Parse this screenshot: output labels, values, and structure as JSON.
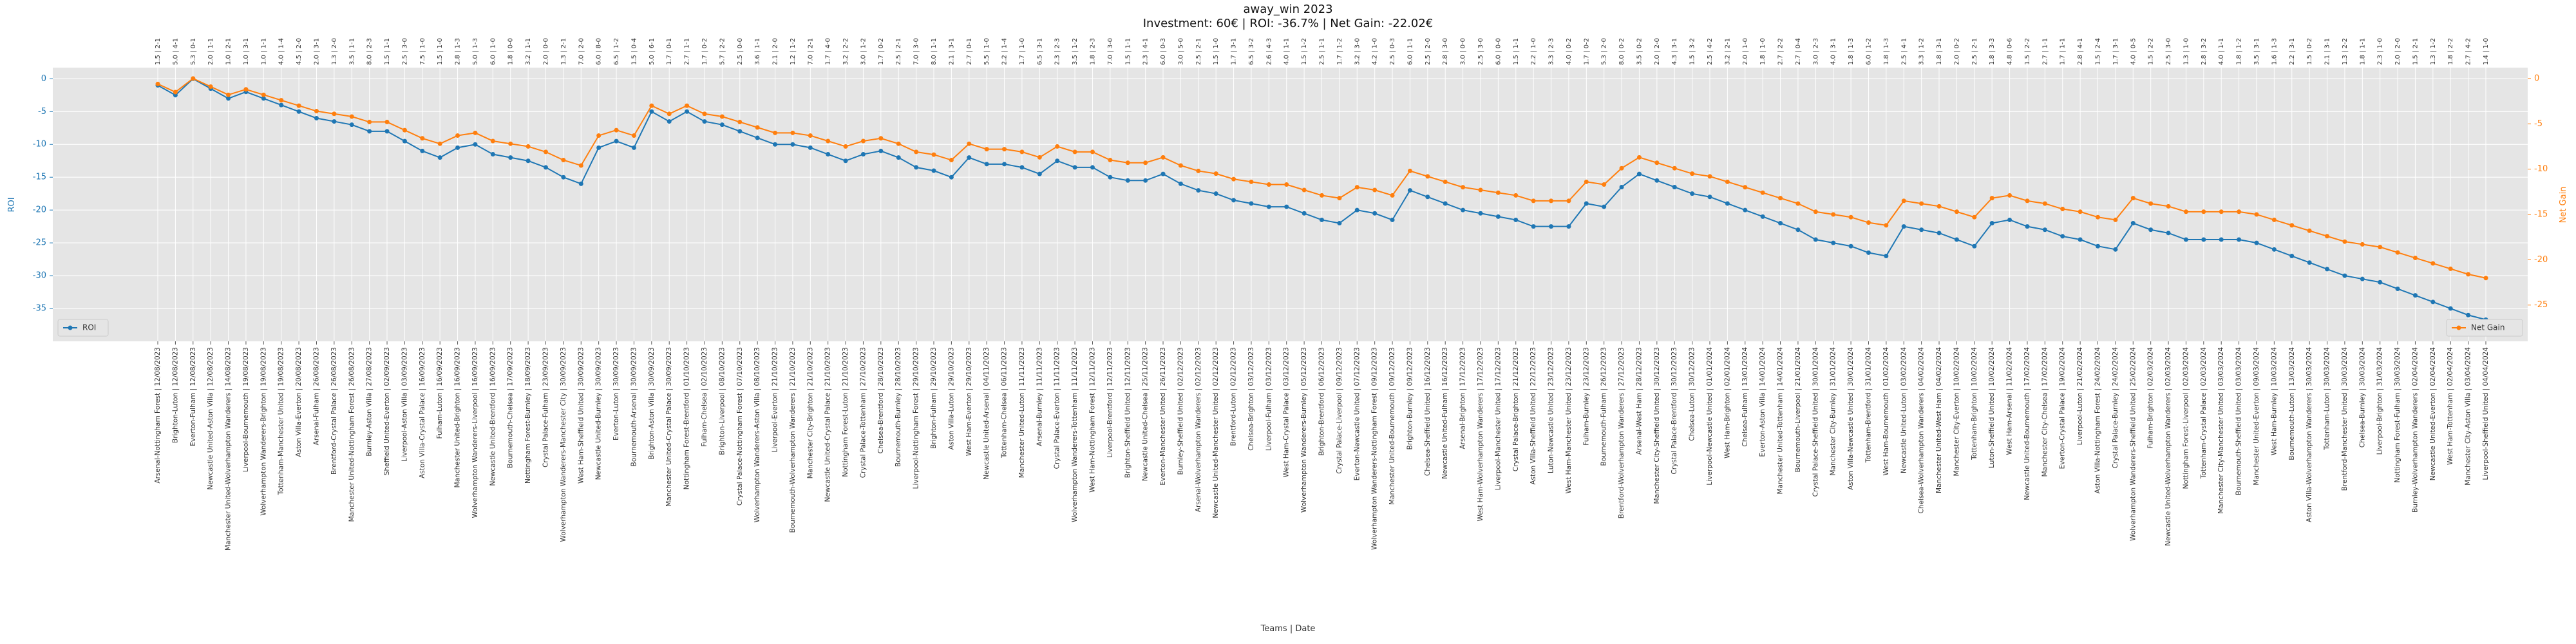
{
  "chart_data": {
    "type": "line",
    "title": "away_win 2023",
    "subtitle": "Investment: 60€ | ROI: -36.7% | Net Gain: -22.02€",
    "x_label": "Teams | Date",
    "y_label": "ROI",
    "y2_label": "Net Gain",
    "grid": true,
    "categories": [
      "Arsenal-Nottingham Forest | 12/08/2023",
      "Brighton-Luton | 12/08/2023",
      "Everton-Fulham | 12/08/2023",
      "Newcastle United-Aston Villa | 12/08/2023",
      "Manchester United-Wolverhampton Wanderers | 14/08/2023",
      "Liverpool-Bournemouth | 19/08/2023",
      "Wolverhampton Wanderers-Brighton | 19/08/2023",
      "Tottenham-Manchester United | 19/08/2023",
      "Aston Villa-Everton | 20/08/2023",
      "Arsenal-Fulham | 26/08/2023",
      "Brentford-Crystal Palace | 26/08/2023",
      "Manchester United-Nottingham Forest | 26/08/2023",
      "Burnley-Aston Villa | 27/08/2023",
      "Sheffield United-Everton | 02/09/2023",
      "Liverpool-Aston Villa | 03/09/2023",
      "Aston Villa-Crystal Palace | 16/09/2023",
      "Fulham-Luton | 16/09/2023",
      "Manchester United-Brighton | 16/09/2023",
      "Wolverhampton Wanderers-Liverpool | 16/09/2023",
      "Newcastle United-Brentford | 16/09/2023",
      "Bournemouth-Chelsea | 17/09/2023",
      "Nottingham Forest-Burnley | 18/09/2023",
      "Crystal Palace-Fulham | 23/09/2023",
      "Wolverhampton Wanderers-Manchester City | 30/09/2023",
      "West Ham-Sheffield United | 30/09/2023",
      "Newcastle United-Burnley | 30/09/2023",
      "Everton-Luton | 30/09/2023",
      "Bournemouth-Arsenal | 30/09/2023",
      "Brighton-Aston Villa | 30/09/2023",
      "Manchester United-Crystal Palace | 30/09/2023",
      "Nottingham Forest-Brentford | 01/10/2023",
      "Fulham-Chelsea | 02/10/2023",
      "Brighton-Liverpool | 08/10/2023",
      "Crystal Palace-Nottingham Forest | 07/10/2023",
      "Wolverhampton Wanderers-Aston Villa | 08/10/2023",
      "Liverpool-Everton | 21/10/2023",
      "Bournemouth-Wolverhampton Wanderers | 21/10/2023",
      "Manchester City-Brighton | 21/10/2023",
      "Newcastle United-Crystal Palace | 21/10/2023",
      "Nottingham Forest-Luton | 21/10/2023",
      "Crystal Palace-Tottenham | 27/10/2023",
      "Chelsea-Brentford | 28/10/2023",
      "Bournemouth-Burnley | 28/10/2023",
      "Liverpool-Nottingham Forest | 29/10/2023",
      "Brighton-Fulham | 29/10/2023",
      "Aston Villa-Luton | 29/10/2023",
      "West Ham-Everton | 29/10/2023",
      "Newcastle United-Arsenal | 04/11/2023",
      "Tottenham-Chelsea | 06/11/2023",
      "Manchester United-Luton | 11/11/2023",
      "Arsenal-Burnley | 11/11/2023",
      "Crystal Palace-Everton | 11/11/2023",
      "Wolverhampton Wanderers-Tottenham | 11/11/2023",
      "West Ham-Nottingham Forest | 12/11/2023",
      "Liverpool-Brentford | 12/11/2023",
      "Brighton-Sheffield United | 12/11/2023",
      "Newcastle United-Chelsea | 25/11/2023",
      "Everton-Manchester United | 26/11/2023",
      "Burnley-Sheffield United | 02/12/2023",
      "Arsenal-Wolverhampton Wanderers | 02/12/2023",
      "Newcastle United-Manchester United | 02/12/2023",
      "Brentford-Luton | 02/12/2023",
      "Chelsea-Brighton | 03/12/2023",
      "Liverpool-Fulham | 03/12/2023",
      "West Ham-Crystal Palace | 03/12/2023",
      "Wolverhampton Wanderers-Burnley | 05/12/2023",
      "Brighton-Brentford | 06/12/2023",
      "Crystal Palace-Liverpool | 09/12/2023",
      "Everton-Newcastle United | 07/12/2023",
      "Wolverhampton Wanderers-Nottingham Forest | 09/12/2023",
      "Manchester United-Bournemouth | 09/12/2023",
      "Brighton-Burnley | 09/12/2023",
      "Chelsea-Sheffield United | 16/12/2023",
      "Newcastle United-Fulham | 16/12/2023",
      "Arsenal-Brighton | 17/12/2023",
      "West Ham-Wolverhampton Wanderers | 17/12/2023",
      "Liverpool-Manchester United | 17/12/2023",
      "Crystal Palace-Brighton | 21/12/2023",
      "Aston Villa-Sheffield United | 22/12/2023",
      "Luton-Newcastle United | 23/12/2023",
      "West Ham-Manchester United | 23/12/2023",
      "Fulham-Burnley | 23/12/2023",
      "Bournemouth-Fulham | 26/12/2023",
      "Brentford-Wolverhampton Wanderers | 27/12/2023",
      "Arsenal-West Ham | 28/12/2023",
      "Manchester City-Sheffield United | 30/12/2023",
      "Crystal Palace-Brentford | 30/12/2023",
      "Chelsea-Luton | 30/12/2023",
      "Liverpool-Newcastle United | 01/01/2024",
      "West Ham-Brighton | 02/01/2024",
      "Chelsea-Fulham | 13/01/2024",
      "Everton-Aston Villa | 14/01/2024",
      "Manchester United-Tottenham | 14/01/2024",
      "Bournemouth-Liverpool | 21/01/2024",
      "Crystal Palace-Sheffield United | 30/01/2024",
      "Manchester City-Burnley | 31/01/2024",
      "Aston Villa-Newcastle United | 30/01/2024",
      "Tottenham-Brentford | 31/01/2024",
      "West Ham-Bournemouth | 01/02/2024",
      "Newcastle United-Luton | 03/02/2024",
      "Chelsea-Wolverhampton Wanderers | 04/02/2024",
      "Manchester United-West Ham | 04/02/2024",
      "Manchester City-Everton | 10/02/2024",
      "Tottenham-Brighton | 10/02/2024",
      "Luton-Sheffield United | 10/02/2024",
      "West Ham-Arsenal | 11/02/2024",
      "Newcastle United-Bournemouth | 17/02/2024",
      "Manchester City-Chelsea | 17/02/2024",
      "Everton-Crystal Palace | 19/02/2024",
      "Liverpool-Luton | 21/02/2024",
      "Aston Villa-Nottingham Forest | 24/02/2024",
      "Crystal Palace-Burnley | 24/02/2024",
      "Wolverhampton Wanderers-Sheffield United | 25/02/2024",
      "Fulham-Brighton | 02/03/2024",
      "Newcastle United-Wolverhampton Wanderers | 02/03/2024",
      "Nottingham Forest-Liverpool | 02/03/2024",
      "Tottenham-Crystal Palace | 02/03/2024",
      "Manchester City-Manchester United | 03/03/2024",
      "Bournemouth-Sheffield United | 03/03/2024",
      "Manchester United-Everton | 09/03/2024",
      "West Ham-Burnley | 10/03/2024",
      "Bournemouth-Luton | 13/03/2024",
      "Aston Villa-Wolverhampton Wanderers | 30/03/2024",
      "Tottenham-Luton | 30/03/2024",
      "Brentford-Manchester United | 30/03/2024",
      "Chelsea-Burnley | 30/03/2024",
      "Liverpool-Brighton | 31/03/2024",
      "Nottingham Forest-Fulham | 30/03/2024",
      "Burnley-Wolverhampton Wanderers | 02/04/2024",
      "Newcastle United-Everton | 02/04/2024",
      "West Ham-Tottenham | 02/04/2024",
      "Manchester City-Aston Villa | 03/04/2024",
      "Liverpool-Sheffield United | 04/04/2024"
    ],
    "annotations": [
      "1.5 | 2-1",
      "5.0 | 4-1",
      "5.3 | 0-1",
      "2.0 | 1-1",
      "1.0 | 2-1",
      "1.0 | 3-1",
      "1.0 | 1-1",
      "4.0 | 1-4",
      "4.5 | 2-0",
      "2.0 | 3-1",
      "1.3 | 2-0",
      "3.5 | 1-1",
      "8.0 | 2-3",
      "1.5 | 1-1",
      "2.5 | 3-0",
      "7.5 | 1-0",
      "1.5 | 1-0",
      "2.8 | 1-3",
      "5.0 | 1-3",
      "6.0 | 1-0",
      "1.8 | 0-0",
      "3.2 | 1-1",
      "2.0 | 0-0",
      "1.3 | 2-1",
      "7.0 | 2-0",
      "6.0 | 8-0",
      "6.5 | 1-2",
      "1.5 | 0-4",
      "5.0 | 6-1",
      "1.7 | 0-1",
      "2.7 | 1-1",
      "1.7 | 0-2",
      "5.7 | 2-2",
      "2.5 | 0-0",
      "3.6 | 1-1",
      "2.1 | 2-0",
      "1.2 | 1-2",
      "7.0 | 2-1",
      "1.7 | 4-0",
      "3.2 | 2-2",
      "3.0 | 1-2",
      "1.7 | 0-2",
      "2.5 | 2-1",
      "7.0 | 3-0",
      "8.0 | 1-1",
      "2.1 | 3-1",
      "2.7 | 0-1",
      "5.5 | 1-0",
      "2.2 | 1-4",
      "1.7 | 1-0",
      "6.5 | 3-1",
      "2.3 | 2-3",
      "3.5 | 1-2",
      "1.8 | 2-3",
      "7.0 | 3-0",
      "1.5 | 1-1",
      "2.3 | 4-1",
      "6.0 | 0-3",
      "3.0 | 5-0",
      "2.5 | 2-1",
      "1.5 | 1-0",
      "1.7 | 3-1",
      "6.5 | 3-2",
      "2.6 | 4-3",
      "4.0 | 1-1",
      "1.5 | 1-2",
      "2.5 | 1-1",
      "1.7 | 1-2",
      "3.2 | 3-0",
      "4.2 | 1-0",
      "2.5 | 0-3",
      "6.0 | 1-1",
      "2.5 | 2-0",
      "2.8 | 3-0",
      "3.0 | 0-0",
      "2.5 | 3-0",
      "6.0 | 0-0",
      "1.5 | 1-1",
      "2.2 | 1-0",
      "3.3 | 2-3",
      "4.0 | 0-2",
      "1.7 | 0-2",
      "5.3 | 2-0",
      "8.0 | 0-2",
      "3.5 | 0-2",
      "2.0 | 2-0",
      "4.3 | 3-1",
      "1.5 | 3-2",
      "2.5 | 4-2",
      "3.2 | 2-1",
      "2.0 | 1-0",
      "1.8 | 1-0",
      "2.7 | 2-2",
      "2.7 | 0-4",
      "3.0 | 2-3",
      "4.0 | 3-1",
      "1.8 | 1-3",
      "6.0 | 1-2",
      "1.8 | 1-3",
      "2.5 | 4-1",
      "3.3 | 1-2",
      "1.8 | 3-1",
      "2.0 | 0-2",
      "2.5 | 2-1",
      "1.8 | 3-3",
      "4.8 | 0-6",
      "1.5 | 2-2",
      "2.7 | 1-1",
      "1.7 | 1-1",
      "2.8 | 4-1",
      "1.5 | 2-4",
      "1.7 | 3-1",
      "4.0 | 0-5",
      "1.5 | 2-2",
      "2.5 | 3-0",
      "1.3 | 1-0",
      "2.8 | 3-2",
      "4.0 | 1-1",
      "1.8 | 1-2",
      "3.5 | 3-1",
      "1.6 | 1-3",
      "2.2 | 3-1",
      "1.5 | 0-2",
      "2.1 | 3-1",
      "1.3 | 2-2",
      "1.8 | 1-1",
      "2.3 | 1-0",
      "2.0 | 2-0",
      "1.5 | 2-1",
      "1.3 | 1-2",
      "1.8 | 2-2",
      "2.7 | 4-2",
      "1.4 | 1-0"
    ],
    "series": [
      {
        "name": "ROI",
        "color": "#1f77b4",
        "legend": "lower left",
        "values": [
          -1,
          -2.5,
          0,
          -1.5,
          -3,
          -2,
          -3,
          -4,
          -5,
          -6,
          -6.5,
          -7,
          -8,
          -8,
          -9.5,
          -11,
          -12,
          -10.5,
          -10,
          -11.5,
          -12,
          -12.5,
          -13.5,
          -15,
          -16,
          -10.5,
          -9.5,
          -10.5,
          -5,
          -6.5,
          -5,
          -6.5,
          -7,
          -8,
          -9,
          -10,
          -10,
          -10.5,
          -11.5,
          -12.5,
          -11.5,
          -11,
          -12,
          -13.5,
          -14,
          -15,
          -12,
          -13,
          -13,
          -13.5,
          -14.5,
          -12.5,
          -13.5,
          -13.5,
          -15,
          -15.5,
          -15.5,
          -14.5,
          -16,
          -17,
          -17.5,
          -18.5,
          -19,
          -19.5,
          -19.5,
          -20.5,
          -21.5,
          -22,
          -20,
          -20.5,
          -21.5,
          -17,
          -18,
          -19,
          -20,
          -20.5,
          -21,
          -21.5,
          -22.5,
          -22.5,
          -22.5,
          -19,
          -19.5,
          -16.5,
          -14.5,
          -15.5,
          -16.5,
          -17.5,
          -18,
          -19,
          -20,
          -21,
          -22,
          -23,
          -24.5,
          -25,
          -25.5,
          -26.5,
          -27,
          -22.5,
          -23,
          -23.5,
          -24.5,
          -25.5,
          -22,
          -21.5,
          -22.5,
          -23,
          -24,
          -24.5,
          -25.5,
          -26,
          -22,
          -23,
          -23.5,
          -24.5,
          -24.5,
          -24.5,
          -24.5,
          -25,
          -26,
          -27,
          -28,
          -29,
          -30,
          -30.5,
          -31,
          -32,
          -33,
          -34,
          -35,
          -36,
          -36.7
        ]
      },
      {
        "name": "Net Gain",
        "color": "#ff7f0e",
        "axis": "y2",
        "legend": "lower right",
        "values": [
          -0.6,
          -1.5,
          0,
          -0.9,
          -1.8,
          -1.2,
          -1.8,
          -2.4,
          -3,
          -3.6,
          -3.9,
          -4.2,
          -4.8,
          -4.8,
          -5.7,
          -6.6,
          -7.2,
          -6.3,
          -6,
          -6.9,
          -7.2,
          -7.5,
          -8.1,
          -9,
          -9.6,
          -6.3,
          -5.7,
          -6.3,
          -3,
          -3.9,
          -3,
          -3.9,
          -4.2,
          -4.8,
          -5.4,
          -6,
          -6,
          -6.3,
          -6.9,
          -7.5,
          -6.9,
          -6.6,
          -7.2,
          -8.1,
          -8.4,
          -9,
          -7.2,
          -7.8,
          -7.8,
          -8.1,
          -8.7,
          -7.5,
          -8.1,
          -8.1,
          -9,
          -9.3,
          -9.3,
          -8.7,
          -9.6,
          -10.2,
          -10.5,
          -11.1,
          -11.4,
          -11.7,
          -11.7,
          -12.3,
          -12.9,
          -13.2,
          -12,
          -12.3,
          -12.9,
          -10.2,
          -10.8,
          -11.4,
          -12,
          -12.3,
          -12.6,
          -12.9,
          -13.5,
          -13.5,
          -13.5,
          -11.4,
          -11.7,
          -9.9,
          -8.7,
          -9.3,
          -9.9,
          -10.5,
          -10.8,
          -11.4,
          -12,
          -12.6,
          -13.2,
          -13.8,
          -14.7,
          -15,
          -15.3,
          -15.9,
          -16.2,
          -13.5,
          -13.8,
          -14.1,
          -14.7,
          -15.3,
          -13.2,
          -12.9,
          -13.5,
          -13.8,
          -14.4,
          -14.7,
          -15.3,
          -15.6,
          -13.2,
          -13.8,
          -14.1,
          -14.7,
          -14.7,
          -14.7,
          -14.7,
          -15,
          -15.6,
          -16.2,
          -16.8,
          -17.4,
          -18,
          -18.3,
          -18.6,
          -19.2,
          -19.8,
          -20.4,
          -21,
          -21.6,
          -22.02
        ]
      }
    ],
    "ylim": [
      -40,
      1.7
    ],
    "yticks": [
      0,
      -5,
      -10,
      -15,
      -20,
      -25,
      -30,
      -35
    ],
    "y2lim": [
      -29,
      1.2
    ],
    "y2ticks": [
      0,
      -5,
      -10,
      -15,
      -20,
      -25
    ]
  }
}
